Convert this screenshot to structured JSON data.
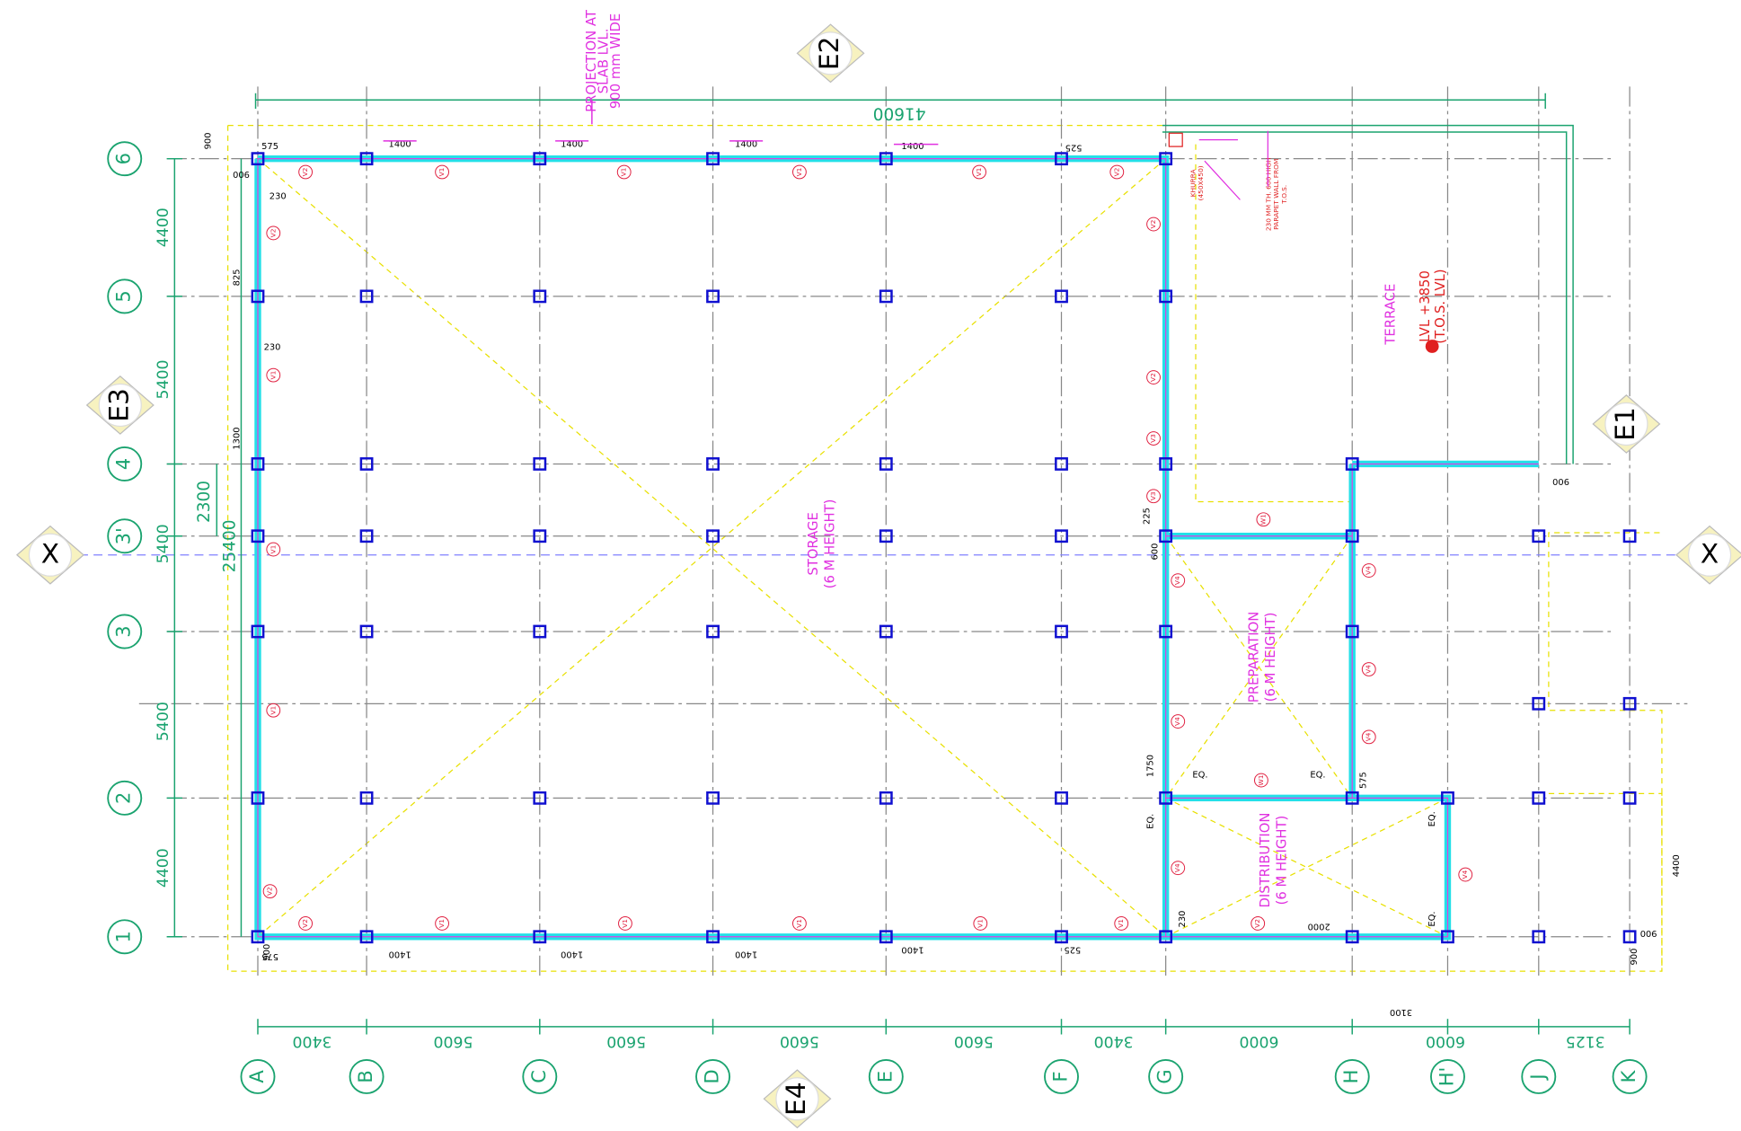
{
  "grid": {
    "columns": [
      "A",
      "B",
      "C",
      "D",
      "E",
      "F",
      "G",
      "H",
      "H'",
      "J",
      "K"
    ],
    "rows": [
      "6",
      "5",
      "4",
      "3'",
      "3",
      "2",
      "1"
    ]
  },
  "dimensions": {
    "columns": [
      "3400",
      "5600",
      "5600",
      "5600",
      "5600",
      "3400",
      "6000",
      "6000",
      "3125"
    ],
    "total": "41600",
    "rows": [
      "4400",
      "5400",
      "5400",
      "5400",
      "4400"
    ],
    "partial": "2300",
    "overall": "25400"
  },
  "markers": [
    "E1",
    "E2",
    "E3",
    "E4",
    "X",
    "X"
  ],
  "rooms": {
    "storage": [
      "STORAGE",
      "(6 M HEIGHT)"
    ],
    "preparation": [
      "PREPARATION",
      "(6 M HEIGHT)"
    ],
    "distribution": [
      "DISTRIBUTION",
      "(6 M HEIGHT)"
    ],
    "terrace": "TERRACE",
    "level": [
      "LVL +3850",
      "(T.O.S. LVL)"
    ]
  },
  "notes": {
    "projection": [
      "PROJECTION AT",
      "SLAB LVL.",
      "900 mm WIDE"
    ],
    "parapet": [
      "230 MM TH. 600 HIGH",
      "PARAPET WALL FROM",
      "T.O.S."
    ],
    "khurra": [
      "KHURRA",
      "(450X450)"
    ]
  },
  "small_dims": [
    "1400",
    "1400",
    "1400",
    "1400",
    "1400",
    "1400",
    "1400",
    "1400",
    "575",
    "525",
    "900",
    "900",
    "230",
    "825",
    "230",
    "1300",
    "225",
    "600",
    "1750",
    "EQ.",
    "EQ.",
    "EQ.",
    "575",
    "230",
    "2000",
    "EQ.",
    "EQ.",
    "3100",
    "4400",
    "900",
    "900",
    "900",
    "525",
    "575",
    "900"
  ],
  "wall_tags": [
    "V2",
    "V1",
    "V1",
    "V1",
    "V1",
    "V2",
    "V2",
    "V1",
    "V1",
    "V1",
    "V2",
    "V2",
    "V1",
    "V1",
    "V1",
    "V1",
    "V1",
    "V2",
    "V2",
    "V3",
    "V3",
    "V4",
    "V4",
    "V4",
    "V2",
    "V4",
    "V4",
    "V4",
    "W1",
    "W1",
    "V4"
  ]
}
